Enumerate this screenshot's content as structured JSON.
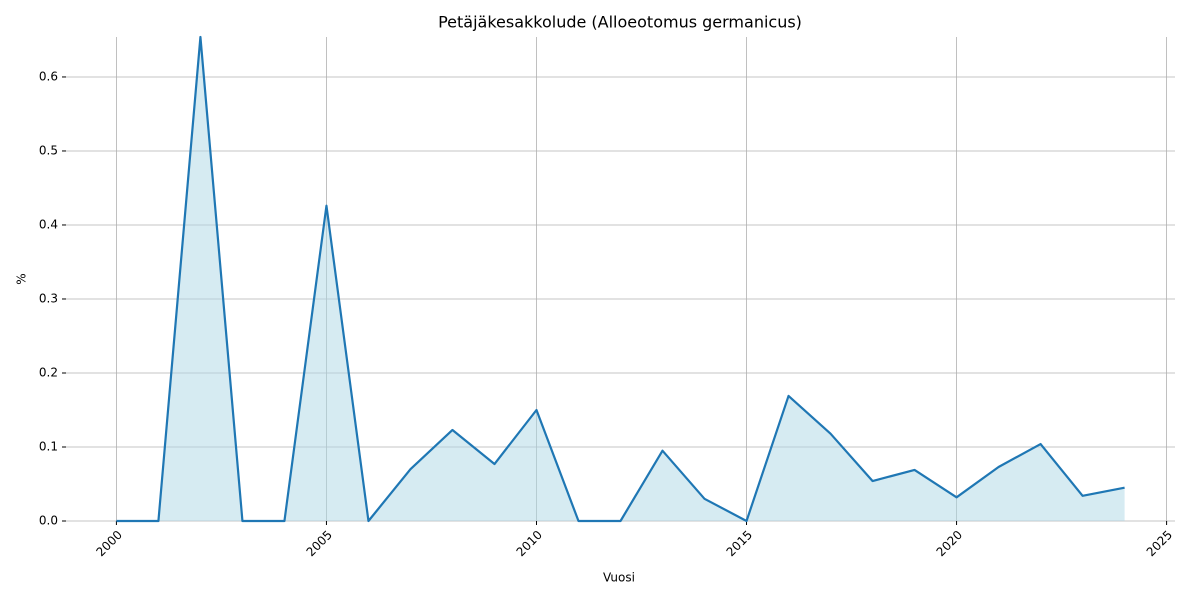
{
  "chart_data": {
    "type": "area",
    "title": "Petäjäkesakkolude (Alloeotomus germanicus)",
    "xlabel": "Vuosi",
    "ylabel": "%",
    "x": [
      2000,
      2001,
      2002,
      2003,
      2004,
      2005,
      2006,
      2007,
      2008,
      2009,
      2010,
      2011,
      2012,
      2013,
      2014,
      2015,
      2016,
      2017,
      2018,
      2019,
      2020,
      2021,
      2022,
      2023,
      2024
    ],
    "series": [
      {
        "name": "%",
        "color": "#1f77b4",
        "fill": "#add8e6",
        "values": [
          0,
          0,
          0.654,
          0,
          0,
          0.426,
          0,
          0.07,
          0.123,
          0.077,
          0.15,
          0,
          0,
          0.095,
          0.03,
          0,
          0.169,
          0.118,
          0.054,
          0.069,
          0.032,
          0.073,
          0.104,
          0.034,
          0.045
        ]
      }
    ],
    "xlim": [
      1998.8,
      2025.2
    ],
    "xticks": [
      2000,
      2005,
      2010,
      2015,
      2020,
      2025
    ],
    "ylim": [
      0,
      0.654
    ],
    "yticks": [
      {
        "value": 0,
        "label": "0.0"
      },
      0.1,
      0.2,
      0.3,
      0.4,
      0.5,
      0.6
    ],
    "grid": true
  }
}
